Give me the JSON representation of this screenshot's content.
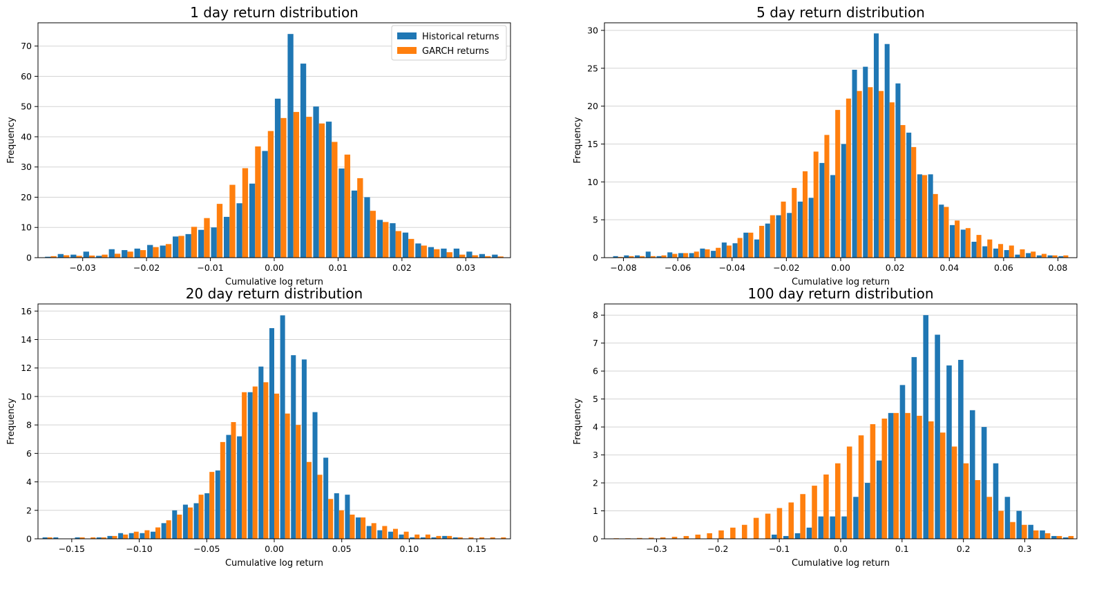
{
  "chart_data": [
    {
      "type": "bar",
      "title": "1 day return distribution",
      "xlabel": "Cumulative log return",
      "ylabel": "Frequency",
      "xlim": [
        -0.037,
        0.037
      ],
      "ylim": [
        0,
        77.7
      ],
      "xticks": [
        -0.03,
        -0.02,
        -0.01,
        0.0,
        0.01,
        0.02,
        0.03
      ],
      "xtick_labels": [
        "−0.03",
        "−0.02",
        "−0.01",
        "0.00",
        "0.01",
        "0.02",
        "0.03"
      ],
      "yticks": [
        0,
        10,
        20,
        30,
        40,
        50,
        60,
        70
      ],
      "ytick_labels": [
        "0",
        "10",
        "20",
        "30",
        "40",
        "50",
        "60",
        "70"
      ],
      "grid": "y",
      "legend": "top-right",
      "bin_width": 0.002,
      "x": [
        -0.035,
        -0.033,
        -0.031,
        -0.029,
        -0.027,
        -0.025,
        -0.023,
        -0.021,
        -0.019,
        -0.017,
        -0.015,
        -0.013,
        -0.011,
        -0.009,
        -0.007,
        -0.005,
        -0.003,
        -0.001,
        0.001,
        0.003,
        0.005,
        0.007,
        0.009,
        0.011,
        0.013,
        0.015,
        0.017,
        0.019,
        0.021,
        0.023,
        0.025,
        0.027,
        0.029,
        0.031,
        0.033,
        0.035
      ],
      "series": [
        {
          "name": "Historical returns",
          "color": "#1f77b4",
          "values": [
            0.3,
            1.2,
            1.0,
            2.0,
            0.6,
            2.8,
            2.5,
            3.0,
            4.2,
            4.0,
            7.0,
            7.8,
            9.2,
            10.0,
            13.5,
            18.0,
            24.5,
            35.3,
            52.6,
            74.0,
            64.2,
            50.0,
            45.0,
            29.5,
            22.2,
            20.0,
            12.5,
            11.4,
            8.3,
            4.7,
            3.5,
            3.0,
            3.0,
            2.0,
            1.2,
            1.0
          ]
        },
        {
          "name": "GARCH returns",
          "color": "#ff7f0e",
          "values": [
            0.5,
            0.8,
            0.6,
            0.7,
            1.0,
            1.3,
            2.0,
            2.5,
            3.5,
            4.5,
            7.2,
            10.2,
            13.1,
            17.8,
            24.1,
            29.6,
            36.8,
            41.9,
            46.2,
            48.2,
            46.6,
            44.4,
            38.3,
            34.1,
            26.3,
            15.5,
            11.8,
            8.8,
            6.2,
            4.0,
            2.8,
            1.8,
            1.0,
            0.8,
            0.5,
            0.4
          ]
        }
      ]
    },
    {
      "type": "bar",
      "title": "5 day return distribution",
      "xlabel": "Cumulative log return",
      "ylabel": "Frequency",
      "xlim": [
        -0.087,
        0.087
      ],
      "ylim": [
        0,
        31
      ],
      "xticks": [
        -0.08,
        -0.06,
        -0.04,
        -0.02,
        0.0,
        0.02,
        0.04,
        0.06,
        0.08
      ],
      "xtick_labels": [
        "−0.08",
        "−0.06",
        "−0.04",
        "−0.02",
        "0.00",
        "0.02",
        "0.04",
        "0.06",
        "0.08"
      ],
      "yticks": [
        0,
        5,
        10,
        15,
        20,
        25,
        30
      ],
      "ytick_labels": [
        "0",
        "5",
        "10",
        "15",
        "20",
        "25",
        "30"
      ],
      "grid": "y",
      "bin_width": 0.004,
      "x": [
        -0.082,
        -0.078,
        -0.074,
        -0.07,
        -0.066,
        -0.062,
        -0.058,
        -0.054,
        -0.05,
        -0.046,
        -0.042,
        -0.038,
        -0.034,
        -0.03,
        -0.026,
        -0.022,
        -0.018,
        -0.014,
        -0.01,
        -0.006,
        -0.002,
        0.002,
        0.006,
        0.01,
        0.014,
        0.018,
        0.022,
        0.026,
        0.03,
        0.034,
        0.038,
        0.042,
        0.046,
        0.05,
        0.054,
        0.058,
        0.062,
        0.066,
        0.07,
        0.074,
        0.078,
        0.082
      ],
      "series": [
        {
          "name": "Historical returns",
          "color": "#1f77b4",
          "values": [
            0.2,
            0.3,
            0.3,
            0.8,
            0.2,
            0.7,
            0.6,
            0.6,
            1.2,
            0.9,
            2.0,
            1.9,
            3.3,
            2.4,
            4.5,
            5.6,
            5.9,
            7.4,
            7.9,
            12.5,
            10.9,
            15.0,
            24.8,
            25.2,
            29.6,
            28.2,
            23.0,
            16.5,
            11.0,
            11.0,
            7.0,
            4.3,
            3.7,
            2.1,
            1.5,
            1.2,
            1.0,
            0.4,
            0.6,
            0.3,
            0.3,
            0.2
          ]
        },
        {
          "name": "GARCH returns",
          "color": "#ff7f0e",
          "values": [
            0.1,
            0.2,
            0.2,
            0.2,
            0.3,
            0.5,
            0.6,
            0.8,
            1.1,
            1.3,
            1.6,
            2.6,
            3.3,
            4.2,
            5.6,
            7.4,
            9.2,
            11.4,
            14.0,
            16.2,
            19.5,
            21.0,
            22.0,
            22.5,
            22.0,
            20.5,
            17.5,
            14.6,
            10.9,
            8.4,
            6.7,
            4.9,
            3.9,
            3.0,
            2.4,
            1.8,
            1.6,
            1.1,
            0.8,
            0.5,
            0.3,
            0.3
          ]
        }
      ]
    },
    {
      "type": "bar",
      "title": "20 day return distribution",
      "xlabel": "Cumulative log return",
      "ylabel": "Frequency",
      "xlim": [
        -0.175,
        0.175
      ],
      "ylim": [
        0,
        16.5
      ],
      "xticks": [
        -0.15,
        -0.1,
        -0.05,
        0.0,
        0.05,
        0.1,
        0.15
      ],
      "xtick_labels": [
        "−0.15",
        "−0.10",
        "−0.05",
        "0.00",
        "0.05",
        "0.10",
        "0.15"
      ],
      "yticks": [
        0,
        2,
        4,
        6,
        8,
        10,
        12,
        14,
        16
      ],
      "ytick_labels": [
        "0",
        "2",
        "4",
        "6",
        "8",
        "10",
        "12",
        "14",
        "16"
      ],
      "grid": "y",
      "bin_width": 0.008,
      "x": [
        -0.168,
        -0.16,
        -0.152,
        -0.144,
        -0.136,
        -0.128,
        -0.12,
        -0.112,
        -0.104,
        -0.096,
        -0.088,
        -0.08,
        -0.072,
        -0.064,
        -0.056,
        -0.048,
        -0.04,
        -0.032,
        -0.024,
        -0.016,
        -0.008,
        0.0,
        0.008,
        0.016,
        0.024,
        0.032,
        0.04,
        0.048,
        0.056,
        0.064,
        0.072,
        0.08,
        0.088,
        0.096,
        0.104,
        0.112,
        0.12,
        0.128,
        0.136,
        0.144,
        0.152,
        0.16,
        0.168
      ],
      "series": [
        {
          "name": "Historical returns",
          "color": "#1f77b4",
          "values": [
            0.1,
            0.1,
            0.0,
            0.1,
            0.0,
            0.1,
            0.2,
            0.4,
            0.4,
            0.4,
            0.5,
            1.1,
            2.0,
            2.4,
            2.5,
            3.2,
            4.8,
            7.3,
            7.2,
            10.3,
            12.1,
            14.8,
            15.7,
            12.9,
            12.6,
            8.9,
            5.7,
            3.2,
            3.1,
            1.5,
            0.9,
            0.6,
            0.5,
            0.3,
            0.1,
            0.1,
            0.1,
            0.2,
            0.1,
            0.0,
            0.0,
            0.0,
            0.0
          ]
        },
        {
          "name": "GARCH returns",
          "color": "#ff7f0e",
          "values": [
            0.1,
            0.0,
            0.0,
            0.1,
            0.1,
            0.1,
            0.2,
            0.3,
            0.5,
            0.6,
            0.8,
            1.3,
            1.7,
            2.2,
            3.1,
            4.7,
            6.8,
            8.2,
            10.3,
            10.7,
            11.0,
            10.2,
            8.8,
            8.0,
            5.4,
            4.5,
            2.8,
            2.0,
            1.7,
            1.5,
            1.1,
            0.9,
            0.7,
            0.5,
            0.3,
            0.3,
            0.2,
            0.2,
            0.1,
            0.1,
            0.1,
            0.1,
            0.1
          ]
        }
      ]
    },
    {
      "type": "bar",
      "title": "100 day return distribution",
      "xlabel": "Cumulative log return",
      "ylabel": "Frequency",
      "xlim": [
        -0.385,
        0.385
      ],
      "ylim": [
        0,
        8.4
      ],
      "xticks": [
        -0.3,
        -0.2,
        -0.1,
        0.0,
        0.1,
        0.2,
        0.3
      ],
      "xtick_labels": [
        "−0.3",
        "−0.2",
        "−0.1",
        "0.0",
        "0.1",
        "0.2",
        "0.3"
      ],
      "yticks": [
        0,
        1,
        2,
        3,
        4,
        5,
        6,
        7,
        8
      ],
      "ytick_labels": [
        "0",
        "1",
        "2",
        "3",
        "4",
        "5",
        "6",
        "7",
        "8"
      ],
      "grid": "y",
      "bin_width": 0.019,
      "x": [
        -0.37,
        -0.351,
        -0.332,
        -0.313,
        -0.294,
        -0.275,
        -0.256,
        -0.237,
        -0.218,
        -0.199,
        -0.18,
        -0.161,
        -0.142,
        -0.123,
        -0.104,
        -0.085,
        -0.066,
        -0.047,
        -0.028,
        -0.009,
        0.01,
        0.029,
        0.048,
        0.067,
        0.086,
        0.105,
        0.124,
        0.143,
        0.162,
        0.181,
        0.2,
        0.219,
        0.238,
        0.257,
        0.276,
        0.295,
        0.314,
        0.333,
        0.352,
        0.371
      ],
      "series": [
        {
          "name": "Historical returns",
          "color": "#1f77b4",
          "values": [
            0.0,
            0.0,
            0.0,
            0.0,
            0.0,
            0.0,
            0.0,
            0.0,
            0.0,
            0.0,
            0.0,
            0.0,
            0.0,
            0.0,
            0.15,
            0.1,
            0.2,
            0.4,
            0.8,
            0.8,
            0.8,
            1.5,
            2.0,
            2.8,
            4.5,
            5.5,
            6.5,
            8.0,
            7.3,
            6.2,
            6.4,
            4.6,
            4.0,
            2.7,
            1.5,
            1.0,
            0.5,
            0.3,
            0.1,
            0.05
          ]
        },
        {
          "name": "GARCH returns",
          "color": "#ff7f0e",
          "values": [
            0.02,
            0.02,
            0.03,
            0.04,
            0.05,
            0.07,
            0.1,
            0.15,
            0.2,
            0.3,
            0.4,
            0.5,
            0.75,
            0.9,
            1.1,
            1.3,
            1.6,
            1.9,
            2.3,
            2.7,
            3.3,
            3.7,
            4.1,
            4.3,
            4.5,
            4.5,
            4.4,
            4.2,
            3.8,
            3.3,
            2.7,
            2.1,
            1.5,
            1.0,
            0.6,
            0.5,
            0.3,
            0.2,
            0.1,
            0.1
          ]
        }
      ]
    }
  ]
}
